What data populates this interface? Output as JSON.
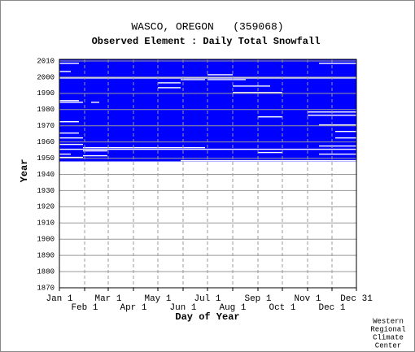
{
  "chart_data": {
    "type": "coverage",
    "title": "WASCO, OREGON   (359068)",
    "subtitle": "Observed Element : Daily Total Snowfall",
    "x_label": "Day of Year",
    "y_label": "Year",
    "footnote": [
      "Western",
      "Regional",
      "Climate",
      "Center"
    ],
    "color": "#0000ff",
    "grid": true,
    "xlim": [
      1,
      366
    ],
    "ylim": [
      1870,
      2011
    ],
    "xticks": [
      {
        "value": 1,
        "label": "Jan 1"
      },
      {
        "value": 32,
        "label": "Feb 1"
      },
      {
        "value": 61,
        "label": "Mar 1"
      },
      {
        "value": 92,
        "label": "Apr 1"
      },
      {
        "value": 122,
        "label": "May 1"
      },
      {
        "value": 153,
        "label": "Jun 1"
      },
      {
        "value": 183,
        "label": "Jul 1"
      },
      {
        "value": 214,
        "label": "Aug 1"
      },
      {
        "value": 245,
        "label": "Sep 1"
      },
      {
        "value": 275,
        "label": "Oct 1"
      },
      {
        "value": 306,
        "label": "Nov 1"
      },
      {
        "value": 336,
        "label": "Dec 1"
      },
      {
        "value": 366,
        "label": "Dec 31"
      }
    ],
    "yticks": [
      1870,
      1880,
      1890,
      1900,
      1910,
      1920,
      1930,
      1940,
      1950,
      1960,
      1970,
      1980,
      1990,
      2000,
      2010
    ],
    "first_year": 1948,
    "last_year": 2010,
    "gaps": [
      [
        1999,
        1,
        366
      ],
      [
        1998,
        150,
        180
      ],
      [
        1996,
        122,
        150
      ],
      [
        1993,
        122,
        150
      ],
      [
        1998,
        183,
        230
      ],
      [
        1994,
        214,
        260
      ],
      [
        1990,
        214,
        275
      ],
      [
        1985,
        1,
        25
      ],
      [
        1984,
        1,
        30
      ],
      [
        1984,
        40,
        50
      ],
      [
        1975,
        245,
        275
      ],
      [
        1976,
        306,
        366
      ],
      [
        1978,
        306,
        366
      ],
      [
        1956,
        30,
        180
      ],
      [
        1954,
        30,
        60
      ],
      [
        1955,
        1,
        366
      ],
      [
        1958,
        1,
        30
      ],
      [
        1962,
        1,
        30
      ],
      [
        1965,
        1,
        25
      ],
      [
        1972,
        1,
        25
      ],
      [
        1952,
        1,
        15
      ],
      [
        1951,
        30,
        60
      ],
      [
        1950,
        1,
        30
      ],
      [
        1966,
        340,
        366
      ],
      [
        1970,
        320,
        366
      ],
      [
        1962,
        340,
        366
      ],
      [
        1957,
        320,
        366
      ],
      [
        1952,
        320,
        366
      ],
      [
        2003,
        1,
        15
      ],
      [
        2008,
        1,
        25
      ],
      [
        2008,
        320,
        366
      ],
      [
        1948,
        150,
        366
      ],
      [
        1953,
        245,
        275
      ],
      [
        2001,
        183,
        214
      ]
    ]
  }
}
